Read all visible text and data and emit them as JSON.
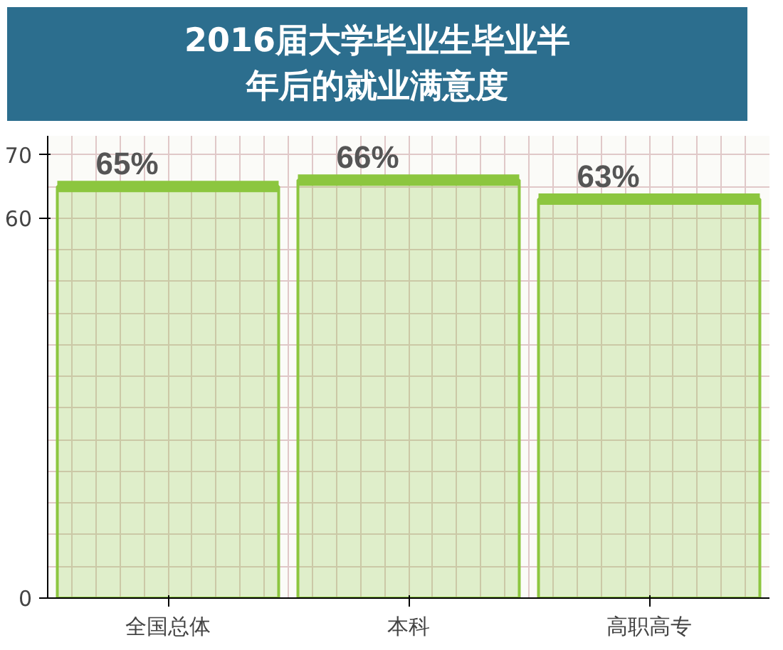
{
  "chart_data": {
    "type": "bar",
    "title": "2016届大学毕业生毕业半年后的就业满意度",
    "categories": [
      "全国总体",
      "本科",
      "高职高专"
    ],
    "values": [
      65,
      66,
      63
    ],
    "color": "#8cc63f",
    "value_labels": [
      "65%",
      "66%",
      "63%"
    ],
    "ylim": [
      0,
      73
    ],
    "yticks": [
      0,
      60,
      70
    ],
    "grid": true
  }
}
